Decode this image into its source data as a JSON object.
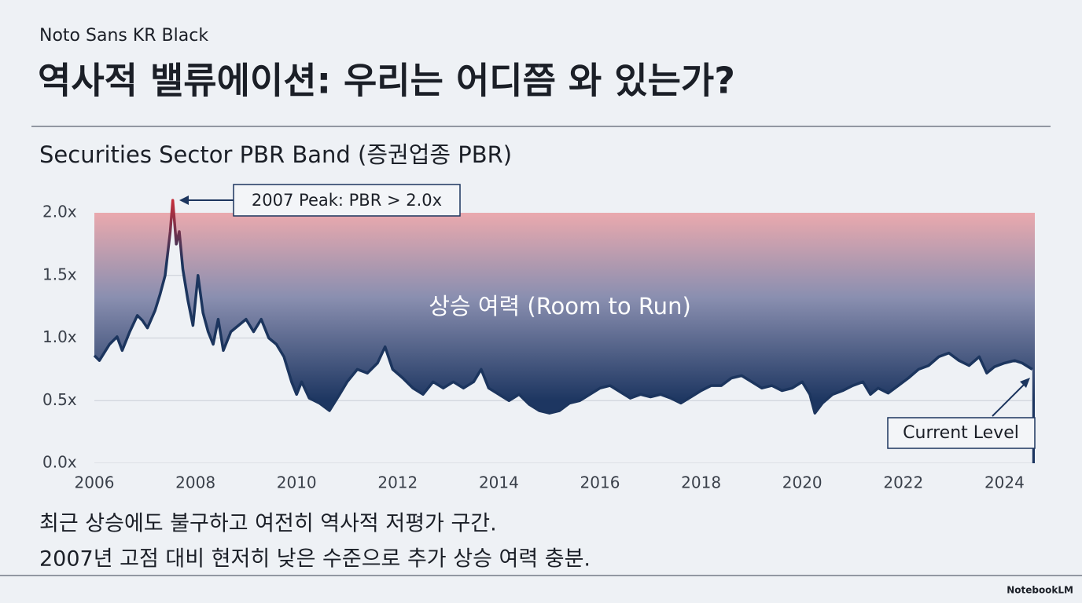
{
  "header": {
    "font_label": "Noto Sans KR Black",
    "title": "역사적 밸류에이션: 우리는 어디쯤 와 있는가?"
  },
  "chart_data": {
    "type": "line",
    "title": "Securities Sector PBR Band (증권업종 PBR)",
    "x": [
      2006.0,
      2006.1,
      2006.3,
      2006.45,
      2006.55,
      2006.7,
      2006.85,
      2006.95,
      2007.05,
      2007.2,
      2007.3,
      2007.4,
      2007.5,
      2007.55,
      2007.62,
      2007.68,
      2007.75,
      2007.85,
      2007.95,
      2008.05,
      2008.15,
      2008.25,
      2008.35,
      2008.45,
      2008.55,
      2008.7,
      2008.85,
      2009.0,
      2009.15,
      2009.3,
      2009.45,
      2009.6,
      2009.75,
      2009.9,
      2010.0,
      2010.1,
      2010.25,
      2010.45,
      2010.65,
      2010.85,
      2011.0,
      2011.2,
      2011.4,
      2011.6,
      2011.75,
      2011.9,
      2012.1,
      2012.3,
      2012.5,
      2012.7,
      2012.9,
      2013.1,
      2013.3,
      2013.5,
      2013.65,
      2013.8,
      2014.0,
      2014.2,
      2014.4,
      2014.6,
      2014.8,
      2015.0,
      2015.2,
      2015.4,
      2015.6,
      2015.8,
      2016.0,
      2016.2,
      2016.4,
      2016.6,
      2016.8,
      2017.0,
      2017.2,
      2017.4,
      2017.6,
      2017.8,
      2018.0,
      2018.2,
      2018.4,
      2018.6,
      2018.8,
      2019.0,
      2019.2,
      2019.4,
      2019.6,
      2019.8,
      2020.0,
      2020.15,
      2020.25,
      2020.4,
      2020.6,
      2020.8,
      2021.0,
      2021.2,
      2021.35,
      2021.5,
      2021.7,
      2021.9,
      2022.1,
      2022.3,
      2022.5,
      2022.7,
      2022.9,
      2023.1,
      2023.3,
      2023.5,
      2023.65,
      2023.8,
      2024.0,
      2024.2,
      2024.35,
      2024.55
    ],
    "values": [
      0.86,
      0.82,
      0.95,
      1.01,
      0.9,
      1.05,
      1.18,
      1.14,
      1.08,
      1.22,
      1.35,
      1.5,
      1.85,
      2.1,
      1.75,
      1.85,
      1.55,
      1.3,
      1.1,
      1.5,
      1.2,
      1.05,
      0.95,
      1.15,
      0.9,
      1.05,
      1.1,
      1.15,
      1.05,
      1.15,
      1.0,
      0.95,
      0.85,
      0.65,
      0.55,
      0.65,
      0.52,
      0.48,
      0.42,
      0.55,
      0.65,
      0.75,
      0.72,
      0.8,
      0.93,
      0.75,
      0.68,
      0.6,
      0.55,
      0.65,
      0.6,
      0.65,
      0.6,
      0.65,
      0.75,
      0.6,
      0.55,
      0.5,
      0.55,
      0.47,
      0.42,
      0.4,
      0.42,
      0.48,
      0.5,
      0.55,
      0.6,
      0.62,
      0.57,
      0.52,
      0.55,
      0.53,
      0.55,
      0.52,
      0.48,
      0.53,
      0.58,
      0.62,
      0.62,
      0.68,
      0.7,
      0.65,
      0.6,
      0.62,
      0.58,
      0.6,
      0.65,
      0.55,
      0.4,
      0.48,
      0.55,
      0.58,
      0.62,
      0.65,
      0.55,
      0.6,
      0.56,
      0.62,
      0.68,
      0.75,
      0.78,
      0.85,
      0.88,
      0.82,
      0.78,
      0.85,
      0.72,
      0.77,
      0.8,
      0.82,
      0.8,
      0.75
    ],
    "color": "#1c355e",
    "peak_color": "#c62f3b",
    "xlim": [
      2006,
      2024.6
    ],
    "xticks": [
      2006,
      2008,
      2010,
      2012,
      2014,
      2016,
      2018,
      2020,
      2022,
      2024
    ],
    "ylim": [
      0,
      2.0
    ],
    "yticks": [
      {
        "value": 0,
        "label": "0.0x"
      },
      {
        "value": 0.5,
        "label": "0.5x"
      },
      {
        "value": 1.0,
        "label": "1.0x"
      },
      {
        "value": 1.5,
        "label": "1.5x"
      },
      {
        "value": 2.0,
        "label": "2.0x"
      }
    ],
    "grid": true,
    "band_label": "상승 여력 (Room to Run)",
    "peak_annotation": "2007 Peak: PBR > 2.0x",
    "current_annotation": "Current Level"
  },
  "footer": {
    "lines": [
      "최근 상승에도 불구하고 여전히 역사적 저평가 구간.",
      "2007년 고점 대비 현저히 낮은 수준으로 추가 상승 여력 충분."
    ],
    "brand": "NotebookLM"
  }
}
